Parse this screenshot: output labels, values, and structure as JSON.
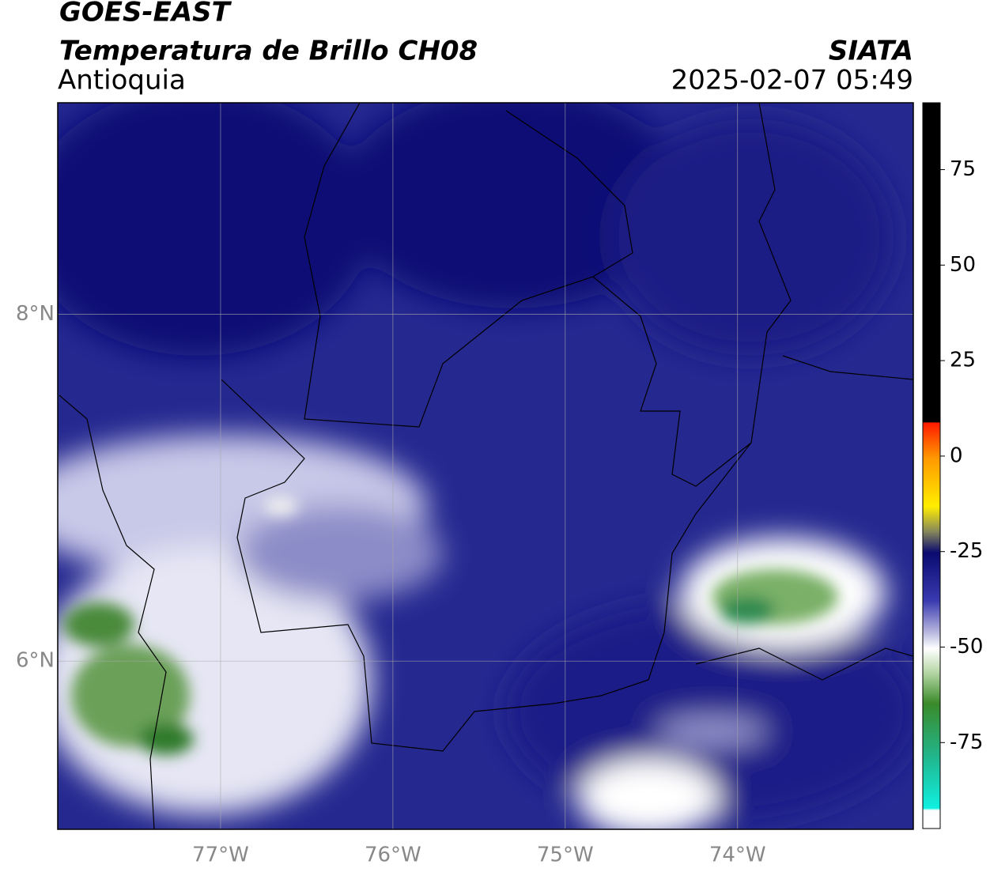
{
  "header": {
    "product": "GOES-EAST",
    "title": "Temperatura de Brillo CH08",
    "region": "Antioquia",
    "source": "SIATA",
    "datetime": "2025-02-07 05:49"
  },
  "map": {
    "lonlim": [
      -77.945,
      -72.98
    ],
    "latlim": [
      5.03,
      9.22
    ],
    "lonticks": [
      {
        "value": -77,
        "label": "77°W"
      },
      {
        "value": -76,
        "label": "76°W"
      },
      {
        "value": -75,
        "label": "75°W"
      },
      {
        "value": -74,
        "label": "74°W"
      }
    ],
    "latticks": [
      {
        "value": 8,
        "label": "8°N"
      },
      {
        "value": 6,
        "label": "6°N"
      }
    ],
    "grid": true
  },
  "colorbar": {
    "lim": [
      -97.5,
      92.5
    ],
    "ticks": [
      75,
      50,
      25,
      0,
      -25,
      -50,
      -75
    ]
  }
}
